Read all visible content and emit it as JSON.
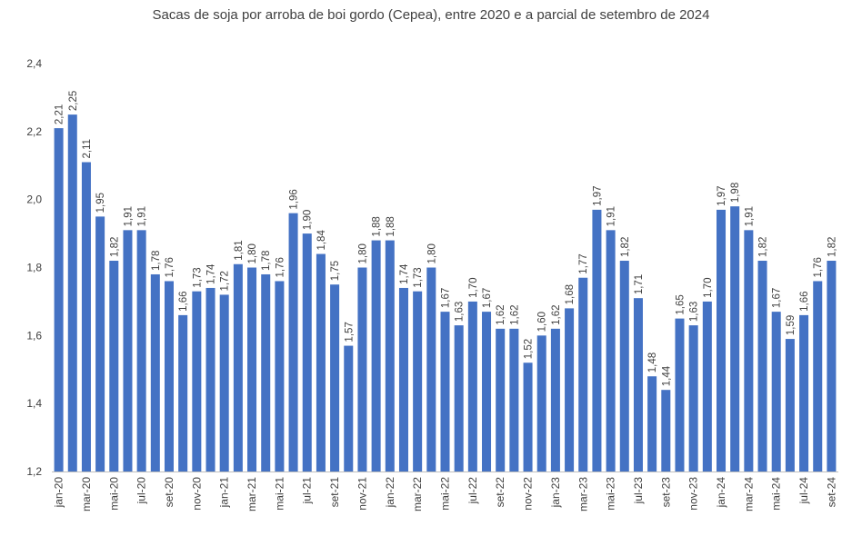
{
  "chart_data": {
    "type": "bar",
    "title": "Sacas de soja por arroba de boi gordo (Cepea), entre 2020 e a parcial de setembro de 2024",
    "xlabel": "",
    "ylabel": "",
    "ylim": [
      1.2,
      2.4
    ],
    "yticks": [
      "1,2",
      "1,4",
      "1,6",
      "1,8",
      "2,0",
      "2,2",
      "2,4"
    ],
    "ytick_values": [
      1.2,
      1.4,
      1.6,
      1.8,
      2.0,
      2.2,
      2.4
    ],
    "grid": false,
    "bar_color": "#4472C4",
    "categories": [
      "jan-20",
      "fev-20",
      "mar-20",
      "abr-20",
      "mai-20",
      "jun-20",
      "jul-20",
      "ago-20",
      "set-20",
      "out-20",
      "nov-20",
      "dez-20",
      "jan-21",
      "fev-21",
      "mar-21",
      "abr-21",
      "mai-21",
      "jun-21",
      "jul-21",
      "ago-21",
      "set-21",
      "out-21",
      "nov-21",
      "dez-21",
      "jan-22",
      "fev-22",
      "mar-22",
      "abr-22",
      "mai-22",
      "jun-22",
      "jul-22",
      "ago-22",
      "set-22",
      "out-22",
      "nov-22",
      "dez-22",
      "jan-23",
      "fev-23",
      "mar-23",
      "abr-23",
      "mai-23",
      "jun-23",
      "jul-23",
      "ago-23",
      "set-23",
      "out-23",
      "nov-23",
      "dez-23",
      "jan-24",
      "fev-24",
      "mar-24",
      "abr-24",
      "mai-24",
      "jun-24",
      "jul-24",
      "ago-24",
      "set-24"
    ],
    "values": [
      2.21,
      2.25,
      2.11,
      1.95,
      1.82,
      1.91,
      1.91,
      1.78,
      1.76,
      1.66,
      1.73,
      1.74,
      1.72,
      1.81,
      1.8,
      1.78,
      1.76,
      1.96,
      1.9,
      1.84,
      1.75,
      1.57,
      1.8,
      1.88,
      1.88,
      1.74,
      1.73,
      1.8,
      1.67,
      1.63,
      1.7,
      1.67,
      1.62,
      1.62,
      1.52,
      1.6,
      1.62,
      1.68,
      1.77,
      1.97,
      1.91,
      1.82,
      1.71,
      1.48,
      1.44,
      1.65,
      1.63,
      1.7,
      1.97,
      1.98,
      1.91,
      1.82,
      1.67,
      1.59,
      1.66,
      1.76,
      1.82
    ],
    "value_labels": [
      "2,21",
      "2,25",
      "2,11",
      "1,95",
      "1,82",
      "1,91",
      "1,91",
      "1,78",
      "1,76",
      "1,66",
      "1,73",
      "1,74",
      "1,72",
      "1,81",
      "1,80",
      "1,78",
      "1,76",
      "1,96",
      "1,90",
      "1,84",
      "1,75",
      "1,57",
      "1,80",
      "1,88",
      "1,88",
      "1,74",
      "1,73",
      "1,80",
      "1,67",
      "1,63",
      "1,70",
      "1,67",
      "1,62",
      "1,62",
      "1,52",
      "1,60",
      "1,62",
      "1,68",
      "1,77",
      "1,97",
      "1,91",
      "1,82",
      "1,71",
      "1,48",
      "1,44",
      "1,65",
      "1,63",
      "1,70",
      "1,97",
      "1,98",
      "1,91",
      "1,82",
      "1,67",
      "1,59",
      "1,66",
      "1,76",
      "1,82"
    ],
    "shown_xtick_every": 2
  }
}
